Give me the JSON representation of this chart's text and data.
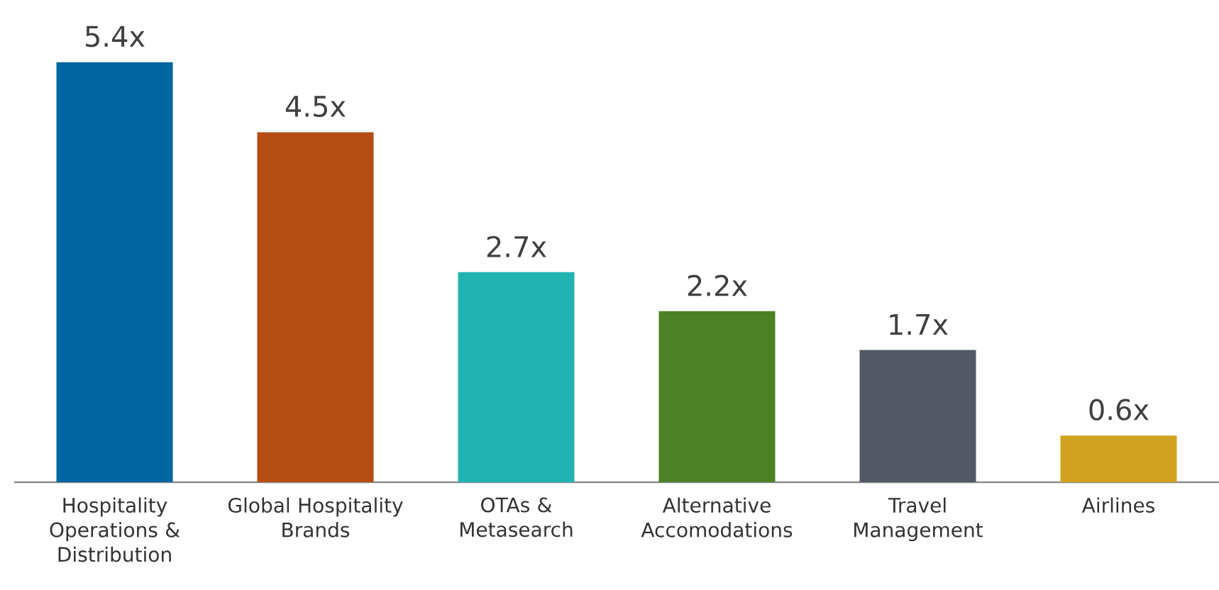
{
  "chart_data": {
    "type": "bar",
    "categories": [
      "Hospitality Operations & Distribution",
      "Global Hospitality Brands",
      "OTAs & Metasearch",
      "Alternative Accomodations",
      "Travel Management",
      "Airlines"
    ],
    "values": [
      5.4,
      4.5,
      2.7,
      2.2,
      1.7,
      0.6
    ],
    "value_labels": [
      "5.4x",
      "4.5x",
      "2.7x",
      "2.2x",
      "1.7x",
      "0.6x"
    ],
    "colors": [
      "#0066a1",
      "#b54d14",
      "#21b3b1",
      "#4e8026",
      "#525866",
      "#d1a220"
    ]
  }
}
